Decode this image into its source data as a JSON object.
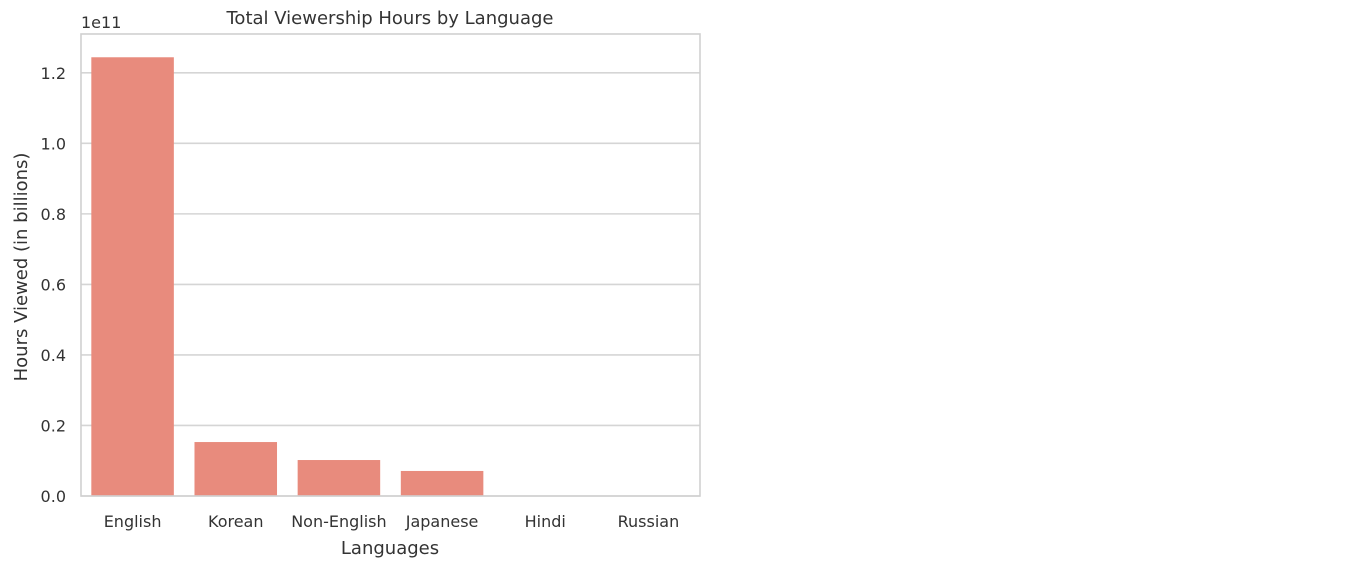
{
  "chart_data": {
    "type": "bar",
    "title": "Total Viewership Hours by Language",
    "xlabel": "Languages",
    "ylabel": "Hours Viewed (in billions)",
    "y_offset_label": "1e11",
    "categories": [
      "English",
      "Korean",
      "Non-English",
      "Japanese",
      "Hindi",
      "Russian"
    ],
    "values": [
      124400000000,
      15300000000,
      10200000000,
      7100000000,
      0,
      0
    ],
    "ylim": [
      0,
      131000000000
    ],
    "yticks": [
      0,
      20000000000,
      40000000000,
      60000000000,
      80000000000,
      100000000000,
      120000000000
    ],
    "ytick_labels": [
      "0.0",
      "0.2",
      "0.4",
      "0.6",
      "0.8",
      "1.0",
      "1.2"
    ],
    "grid": "horizontal",
    "bar_color": "#e88b7d",
    "grid_color": "#d5d5d5",
    "frame_color": "#d0d0d0"
  }
}
